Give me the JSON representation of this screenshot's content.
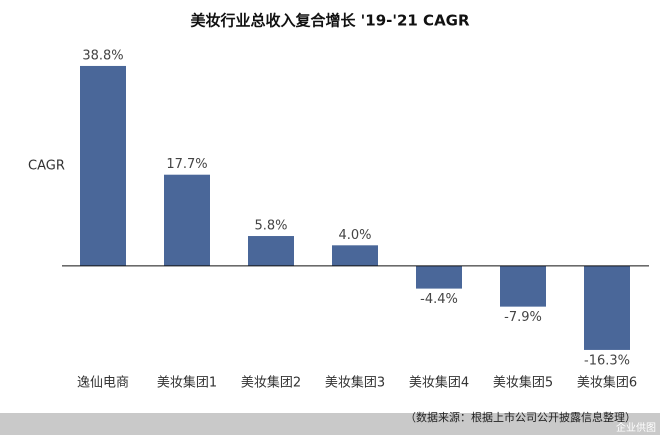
{
  "chart_data": {
    "type": "bar",
    "title": "美妆行业总收入复合增长 '19-'21 CAGR",
    "y_label": "CAGR",
    "categories": [
      "逸仙电商",
      "美妆集团1",
      "美妆集团2",
      "美妆集团3",
      "美妆集团4",
      "美妆集团5",
      "美妆集团6"
    ],
    "values": [
      38.8,
      17.7,
      5.8,
      4.0,
      -4.4,
      -7.9,
      -16.3
    ],
    "value_labels": [
      "38.8%",
      "17.7%",
      "5.8%",
      "4.0%",
      "-4.4%",
      "-7.9%",
      "-16.3%"
    ],
    "color": "#4a6799",
    "ylim": [
      -20,
      45
    ],
    "source": "（数据来源：根据上市公司公开披露信息整理）",
    "watermark": "企业供图"
  }
}
